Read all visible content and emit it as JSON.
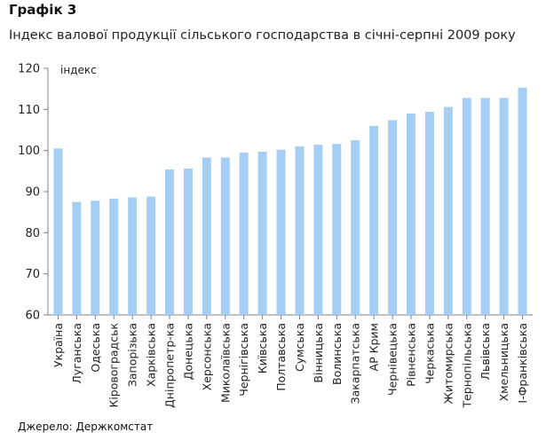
{
  "heading": "Графік 3",
  "subtitle": "Індекс валової продукції сільського господарства в січні-серпні 2009 року",
  "source": "Джерело: Держкомстат",
  "colors": {
    "bar": "#a6cef5",
    "axis": "#808080",
    "text": "#222222"
  },
  "chart_data": {
    "type": "bar",
    "ylabel": "індекс",
    "xlabel": "",
    "ylim": [
      60,
      120
    ],
    "yticks": [
      60,
      70,
      80,
      90,
      100,
      110,
      120
    ],
    "grid": false,
    "categories": [
      "Україна",
      "Луганська",
      "Одеська",
      "Кіровоградськ",
      "Запорізька",
      "Харківська",
      "Дніпропетр-ка",
      "Донецька",
      "Херсонська",
      "Миколаївська",
      "Чернігівська",
      "Київська",
      "Полтавська",
      "Сумська",
      "Вінницька",
      "Волинська",
      "Закарпатська",
      "АР Крим",
      "Чернівецька",
      "Рівненська",
      "Черкаська",
      "Житомирська",
      "Тернопільська",
      "Львівська",
      "Хмельницька",
      "І-Франківська"
    ],
    "values": [
      100.5,
      87.5,
      87.8,
      88.3,
      88.6,
      88.8,
      95.4,
      95.6,
      98.3,
      98.3,
      99.5,
      99.7,
      100.2,
      101.0,
      101.4,
      101.6,
      102.5,
      106.0,
      107.4,
      109.0,
      109.4,
      110.6,
      112.8,
      112.8,
      112.8,
      115.3
    ]
  }
}
